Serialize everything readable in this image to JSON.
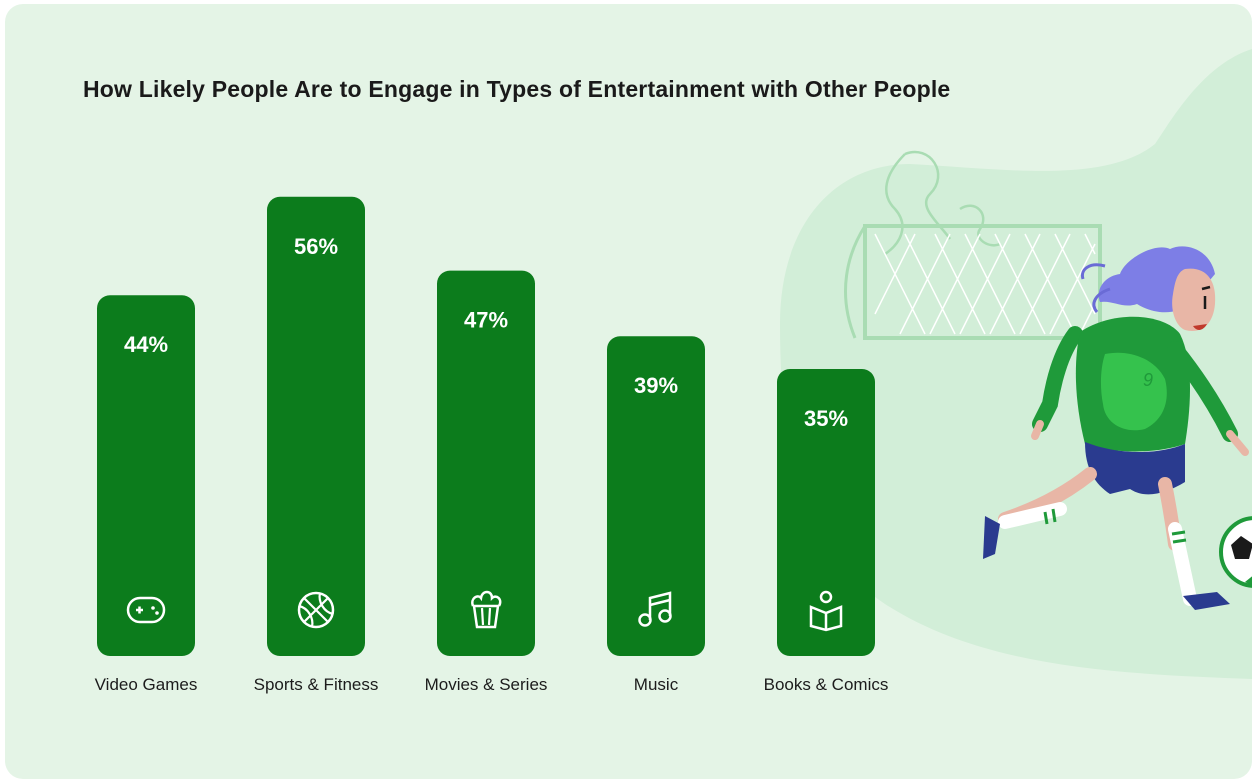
{
  "title": "How Likely People Are to Engage in Types of Entertainment with Other People",
  "colors": {
    "background": "#e4f4e6",
    "blob": "#d2eed8",
    "bar": "#0c7c1c",
    "text": "#1a1a1a"
  },
  "chart_data": {
    "type": "bar",
    "title": "How Likely People Are to Engage in Types of Entertainment with Other People",
    "xlabel": "",
    "ylabel": "",
    "unit": "%",
    "ylim": [
      0,
      60
    ],
    "grid": false,
    "legend": "none",
    "categories": [
      "Video Games",
      "Sports & Fitness",
      "Movies & Series",
      "Music",
      "Books & Comics"
    ],
    "values": [
      44,
      56,
      47,
      39,
      35
    ],
    "value_labels": [
      "44%",
      "56%",
      "47%",
      "39%",
      "35%"
    ],
    "icons": [
      "gamepad-icon",
      "basketball-icon",
      "popcorn-icon",
      "music-note-icon",
      "reading-book-icon"
    ]
  }
}
